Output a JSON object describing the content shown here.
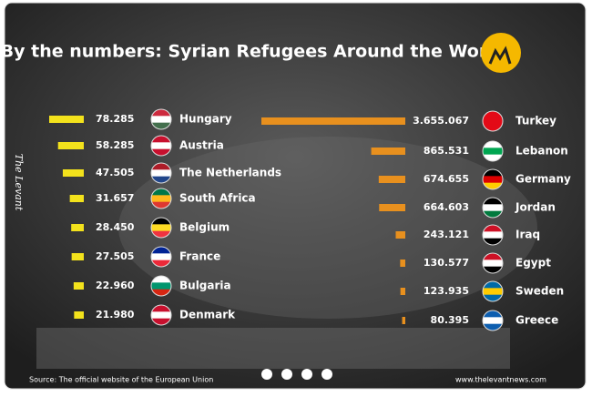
{
  "title": "By the numbers: Syrian Refugees Around the World",
  "brand": "The Levant",
  "source": "Source: The official website of the European Union",
  "website": "www.thelevantnews.com",
  "chart_data": [
    {
      "type": "bar",
      "orientation": "horizontal",
      "color": "#f3e21c",
      "categories": [
        "Hungary",
        "Austria",
        "The Netherlands",
        "South Africa",
        "Belgium",
        "France",
        "Bulgaria",
        "Denmark"
      ],
      "values": [
        78285,
        58285,
        47505,
        31657,
        28450,
        27505,
        22960,
        21980
      ],
      "value_labels": [
        "78.285",
        "58.285",
        "47.505",
        "31.657",
        "28.450",
        "27.505",
        "22.960",
        "21.980"
      ]
    },
    {
      "type": "bar",
      "orientation": "horizontal",
      "color": "#e8901e",
      "categories": [
        "Turkey",
        "Lebanon",
        "Germany",
        "Jordan",
        "Iraq",
        "Egypt",
        "Sweden",
        "Greece"
      ],
      "values": [
        3655067,
        865531,
        674655,
        664603,
        243121,
        130577,
        123935,
        80395
      ],
      "value_labels": [
        "3.655.067",
        "865.531",
        "674.655",
        "664.603",
        "243.121",
        "130.577",
        "123.935",
        "80.395"
      ]
    }
  ]
}
